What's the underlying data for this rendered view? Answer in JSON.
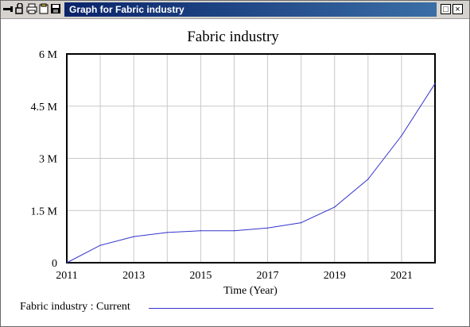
{
  "window": {
    "title": "Graph for Fabric industry",
    "toolbar_icons": [
      "minimize-tool-icon",
      "lock-icon",
      "print-icon",
      "copy-icon",
      "save-icon"
    ],
    "buttons": {
      "restore": "□",
      "close": "×"
    }
  },
  "legend": {
    "label": "Fabric industry : Current"
  },
  "colors": {
    "series": "#3333cc",
    "grid": "#c8c8c8",
    "title_bar_start": "#0a246a",
    "title_bar_end": "#3a6ea5"
  },
  "chart_data": {
    "type": "line",
    "title": "Fabric industry",
    "xlabel": "Time (Year)",
    "ylabel": "",
    "xlim": [
      2011,
      2022
    ],
    "ylim": [
      0,
      6000000
    ],
    "x_ticks": [
      2011,
      2013,
      2015,
      2017,
      2019,
      2021
    ],
    "x_tick_labels": [
      "2011",
      "2013",
      "2015",
      "2017",
      "2019",
      "2021"
    ],
    "y_ticks": [
      0,
      1500000,
      3000000,
      4500000,
      6000000
    ],
    "y_tick_labels": [
      "0",
      "1.5 M",
      "3 M",
      "4.5 M",
      "6 M"
    ],
    "grid": true,
    "legend_position": "bottom-left",
    "series": [
      {
        "name": "Fabric industry : Current",
        "x": [
          2011,
          2012,
          2013,
          2014,
          2015,
          2016,
          2017,
          2018,
          2019,
          2020,
          2021,
          2022
        ],
        "values": [
          0,
          500000,
          750000,
          870000,
          920000,
          920000,
          1000000,
          1150000,
          1600000,
          2400000,
          3650000,
          5150000
        ]
      }
    ]
  }
}
